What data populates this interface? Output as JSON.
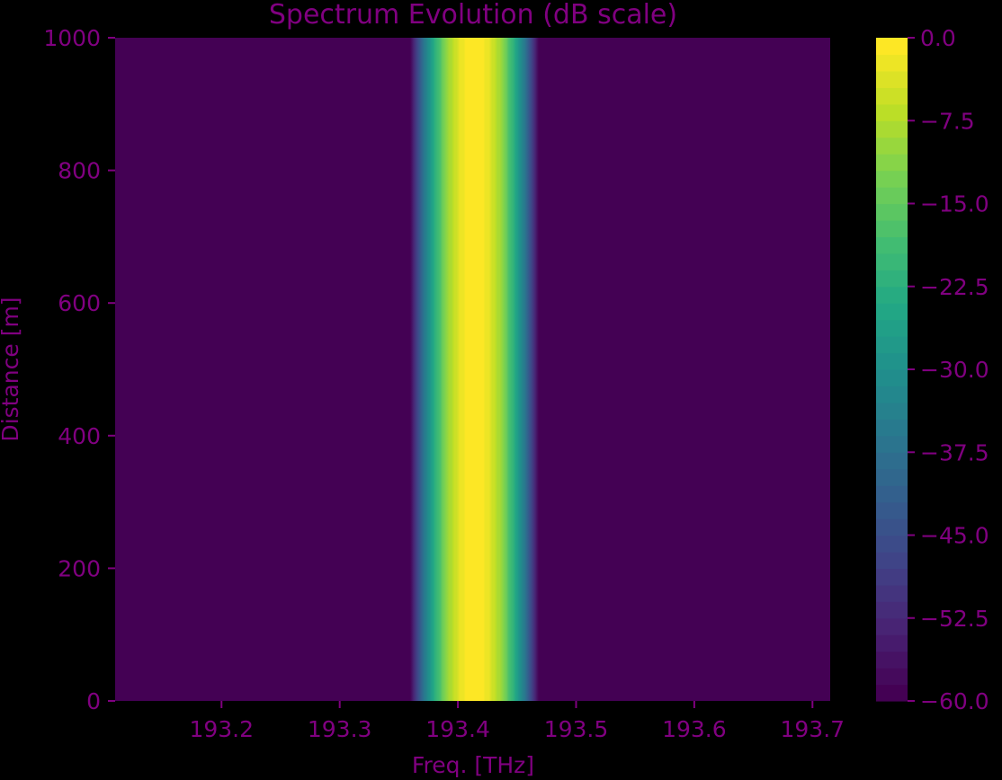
{
  "chart_data": {
    "type": "heatmap",
    "title": "Spectrum Evolution (dB scale)",
    "xlabel": "Freq. [THz]",
    "ylabel": "Distance [m]",
    "xlim": [
      193.11,
      193.715
    ],
    "ylim": [
      0,
      1000
    ],
    "x_ticks": [
      193.2,
      193.3,
      193.4,
      193.5,
      193.6,
      193.7
    ],
    "x_tick_labels": [
      "193.2",
      "193.3",
      "193.4",
      "193.5",
      "193.6",
      "193.7"
    ],
    "y_ticks": [
      0,
      200,
      400,
      600,
      800,
      1000
    ],
    "y_tick_labels": [
      "0",
      "200",
      "400",
      "600",
      "800",
      "1000"
    ],
    "colorbar": {
      "range": [
        -60.0,
        0.0
      ],
      "levels": 40,
      "ticks": [
        0.0,
        -7.5,
        -15.0,
        -22.5,
        -30.0,
        -37.5,
        -45.0,
        -52.5,
        -60.0
      ],
      "tick_labels": [
        "0.0",
        "−7.5",
        "−15.0",
        "−22.5",
        "−30.0",
        "−37.5",
        "−45.0",
        "−52.5",
        "−60.0"
      ],
      "colormap": "viridis"
    },
    "spectrum": {
      "center_thz": 193.414,
      "peak_db": 0.0,
      "floor_db": -60.0,
      "db_per_thz2": -20000,
      "constant_along_distance": true
    },
    "colors": {
      "text": "#800080",
      "background": "#000000"
    }
  }
}
